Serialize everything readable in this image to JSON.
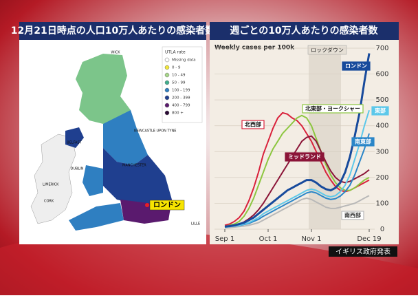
{
  "map": {
    "title": "12月21日時点の人口10万人あたりの感染者数",
    "legend_title": "UTLA rate",
    "legend": [
      {
        "label": "Missing data",
        "color": "#ffffff"
      },
      {
        "label": "0 - 9",
        "color": "#f2e63a"
      },
      {
        "label": "10 - 49",
        "color": "#a8d88a"
      },
      {
        "label": "50 - 99",
        "color": "#3fae8c"
      },
      {
        "label": "100 - 199",
        "color": "#2f7fc1"
      },
      {
        "label": "200 - 399",
        "color": "#1f3f8f"
      },
      {
        "label": "400 - 799",
        "color": "#5a1a6e"
      },
      {
        "label": "800 +",
        "color": "#2a0a35"
      }
    ],
    "places": [
      "WICK",
      "NEWCASTLE UPON TYNE",
      "BELFAST",
      "MANCHESTER",
      "DUBLIN",
      "LIMERICK",
      "CORK",
      "LILLE"
    ],
    "callout": "ロンドン"
  },
  "chart_data": {
    "type": "line",
    "title": "週ごとの10万人あたりの感染者数",
    "subtitle": "Weekly cases per 100k",
    "annotation": "ロックダウン",
    "source": "イギリス政府発表",
    "categories": [
      "Sep 1",
      null,
      null,
      null,
      null,
      null,
      null,
      null,
      null,
      "Oct 1",
      null,
      null,
      null,
      null,
      null,
      null,
      null,
      null,
      "Nov 1",
      null,
      null,
      null,
      null,
      null,
      null,
      null,
      null,
      null,
      null,
      null,
      "Dec 19"
    ],
    "ylim": [
      0,
      700
    ],
    "yticks": [
      0,
      100,
      200,
      300,
      400,
      500,
      600,
      700
    ],
    "grid": true,
    "series": [
      {
        "name": "南西部",
        "color": "#b8b8b8",
        "values": [
          5,
          6,
          8,
          10,
          12,
          15,
          20,
          25,
          35,
          45,
          55,
          65,
          75,
          85,
          95,
          105,
          115,
          120,
          115,
          105,
          95,
          85,
          80,
          80,
          85,
          90,
          95,
          100,
          110,
          120,
          130
        ]
      },
      {
        "name": "北西部",
        "color": "#d9213b",
        "values": [
          15,
          20,
          30,
          45,
          70,
          110,
          160,
          220,
          290,
          340,
          390,
          430,
          450,
          445,
          430,
          420,
          400,
          370,
          340,
          300,
          260,
          220,
          190,
          165,
          150,
          145,
          150,
          160,
          170,
          180,
          190
        ]
      },
      {
        "name": "北東部・ヨークシャー",
        "color": "#8cc63f",
        "values": [
          10,
          15,
          20,
          30,
          50,
          80,
          120,
          170,
          220,
          270,
          310,
          340,
          370,
          390,
          410,
          430,
          440,
          430,
          400,
          350,
          300,
          250,
          210,
          180,
          160,
          150,
          150,
          160,
          175,
          190,
          200
        ]
      },
      {
        "name": "ミッドランド",
        "color": "#8b1538",
        "values": [
          10,
          12,
          15,
          20,
          28,
          40,
          55,
          75,
          100,
          130,
          160,
          190,
          220,
          250,
          280,
          310,
          340,
          355,
          360,
          340,
          300,
          260,
          225,
          200,
          185,
          180,
          185,
          195,
          205,
          215,
          230
        ]
      },
      {
        "name": "南東部",
        "color": "#2a86c8",
        "values": [
          8,
          10,
          12,
          14,
          18,
          22,
          30,
          38,
          50,
          60,
          70,
          80,
          90,
          100,
          110,
          120,
          130,
          140,
          145,
          140,
          130,
          120,
          115,
          118,
          128,
          145,
          170,
          210,
          260,
          310,
          370
        ]
      },
      {
        "name": "東部",
        "color": "#5cc8ea",
        "values": [
          8,
          10,
          12,
          15,
          20,
          25,
          35,
          45,
          60,
          70,
          80,
          90,
          100,
          110,
          120,
          130,
          140,
          150,
          155,
          150,
          140,
          130,
          125,
          130,
          145,
          170,
          210,
          270,
          330,
          400,
          460
        ]
      },
      {
        "name": "ロンドン",
        "color": "#174a9c",
        "values": [
          10,
          12,
          15,
          20,
          25,
          35,
          45,
          60,
          75,
          90,
          105,
          120,
          135,
          150,
          160,
          170,
          180,
          190,
          190,
          180,
          165,
          155,
          150,
          160,
          180,
          220,
          280,
          360,
          450,
          570,
          680
        ]
      }
    ]
  }
}
